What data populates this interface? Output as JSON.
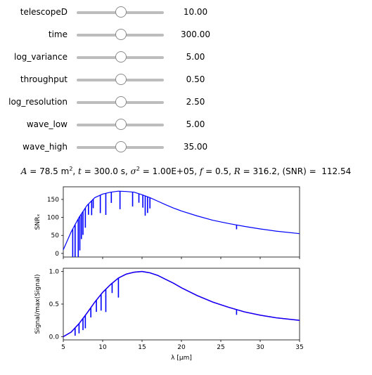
{
  "sliders": [
    {
      "label": "telescopeD",
      "value": "10.00"
    },
    {
      "label": "time",
      "value": "300.00"
    },
    {
      "label": "log_variance",
      "value": "5.00"
    },
    {
      "label": "throughput",
      "value": "0.50"
    },
    {
      "label": "log_resolution",
      "value": "2.50"
    },
    {
      "label": "wave_low",
      "value": "5.00"
    },
    {
      "label": "wave_high",
      "value": "35.00"
    }
  ],
  "summary": {
    "A": "78.5",
    "t": "300.0",
    "sigma2": "1.00E+05",
    "f": "0.5",
    "R": "316.2",
    "snr": "112.54"
  },
  "colors": {
    "line": "#0000ff",
    "line2": "#7a00c8",
    "slider": "#bdbdbd"
  },
  "chart_data": [
    {
      "type": "line",
      "title": "",
      "xlabel": "",
      "ylabel": "SNRₓ",
      "xlim": [
        5,
        35
      ],
      "ylim": [
        -10,
        185
      ],
      "yticks": [
        0,
        50,
        100,
        150
      ],
      "series": [
        {
          "x": [
            5,
            6,
            7,
            8,
            9,
            10,
            11,
            12,
            13,
            14,
            15,
            16,
            17,
            18,
            19,
            20,
            22,
            24,
            26,
            28,
            30,
            32,
            35
          ],
          "y": [
            10,
            60,
            100,
            133,
            155,
            165,
            170,
            173,
            172,
            170,
            163,
            155,
            145,
            135,
            126,
            118,
            104,
            92,
            83,
            75,
            68,
            62,
            55
          ]
        }
      ]
    },
    {
      "type": "line",
      "title": "",
      "xlabel": "λ [µm]",
      "ylabel": "Signal/max(Signal)",
      "xlim": [
        5,
        35
      ],
      "ylim": [
        -0.05,
        1.05
      ],
      "xticks": [
        5,
        10,
        15,
        20,
        25,
        30,
        35
      ],
      "yticks": [
        0.0,
        0.5,
        1.0
      ],
      "series": [
        {
          "x": [
            5,
            6,
            7,
            8,
            9,
            10,
            11,
            12,
            13,
            14,
            15,
            16,
            17,
            18,
            19,
            20,
            22,
            24,
            26,
            28,
            30,
            32,
            35
          ],
          "y": [
            0.0,
            0.07,
            0.2,
            0.36,
            0.53,
            0.68,
            0.8,
            0.9,
            0.96,
            0.99,
            1.0,
            0.98,
            0.94,
            0.88,
            0.82,
            0.75,
            0.63,
            0.53,
            0.45,
            0.38,
            0.33,
            0.29,
            0.25
          ]
        }
      ]
    }
  ]
}
